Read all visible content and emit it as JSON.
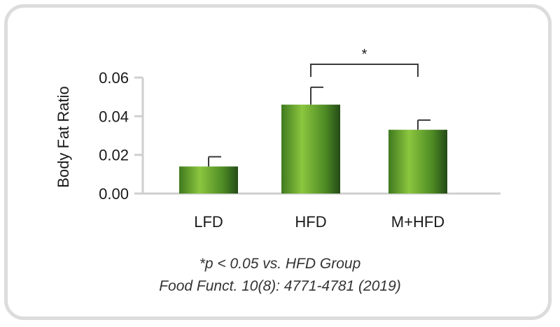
{
  "chart_data": {
    "type": "bar",
    "ylabel": "Body Fat Ratio",
    "xlabel": "",
    "categories": [
      "LFD",
      "HFD",
      "M+HFD"
    ],
    "values": [
      0.014,
      0.046,
      0.033
    ],
    "errors": [
      0.005,
      0.009,
      0.005
    ],
    "ylim": [
      0,
      0.06
    ],
    "yticks": [
      "0.00",
      "0.02",
      "0.04",
      "0.06"
    ],
    "grid": false,
    "significance": [
      {
        "from": "HFD",
        "to": "M+HFD",
        "label": "*"
      }
    ],
    "colors": {
      "bar_dark": "#2f5a1d",
      "bar_mid": "#5e9a2c",
      "bar_light": "#8cc63f",
      "axis": "#cfcfcf"
    }
  },
  "captions": {
    "line1": "*p < 0.05 vs. HFD Group",
    "line2": "Food Funct. 10(8): 4771-4781 (2019)"
  }
}
